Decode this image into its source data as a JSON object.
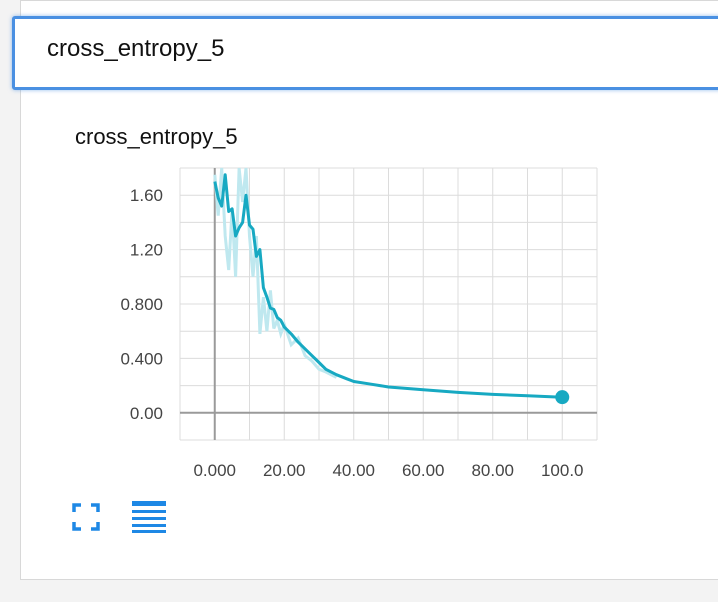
{
  "search": {
    "value": "cross_entropy_5"
  },
  "chart": {
    "title": "cross_entropy_5"
  },
  "colors": {
    "series": "#17a9c2",
    "series_raw": "#bfe8ef",
    "accent": "#4a90e2",
    "icon": "#1e88e5"
  },
  "icons": {
    "fullscreen": "fullscreen-icon",
    "menu": "menu-lines-icon"
  },
  "chart_data": {
    "type": "line",
    "title": "cross_entropy_5",
    "xlabel": "",
    "ylabel": "",
    "xlim": [
      -10,
      110
    ],
    "ylim": [
      -0.2,
      1.8
    ],
    "x_ticks": [
      0,
      20,
      40,
      60,
      80,
      100
    ],
    "x_tick_labels": [
      "0.000",
      "20.00",
      "40.00",
      "60.00",
      "80.00",
      "100.0"
    ],
    "y_ticks": [
      0,
      0.4,
      0.8,
      1.2,
      1.6
    ],
    "y_tick_labels": [
      "0.00",
      "0.400",
      "0.800",
      "1.20",
      "1.60"
    ],
    "grid": true,
    "series": [
      {
        "smoothed": true,
        "x": [
          0,
          1,
          2,
          3,
          4,
          5,
          6,
          7,
          8,
          9,
          10,
          11,
          12,
          13,
          14,
          15,
          16,
          17,
          18,
          19,
          20,
          22,
          24,
          26,
          28,
          30,
          32,
          35,
          38,
          40,
          45,
          50,
          60,
          70,
          80,
          90,
          100
        ],
        "y": [
          1.7,
          1.58,
          1.52,
          1.75,
          1.48,
          1.5,
          1.3,
          1.36,
          1.4,
          1.6,
          1.38,
          1.35,
          1.15,
          1.2,
          0.92,
          0.85,
          0.77,
          0.76,
          0.7,
          0.68,
          0.63,
          0.58,
          0.52,
          0.47,
          0.42,
          0.37,
          0.32,
          0.28,
          0.25,
          0.23,
          0.21,
          0.19,
          0.17,
          0.15,
          0.135,
          0.125,
          0.115
        ]
      },
      {
        "smoothed": false,
        "x": [
          0,
          1,
          2,
          3,
          4,
          5,
          6,
          7,
          8,
          9,
          10,
          11,
          12,
          13,
          14,
          15,
          16,
          17,
          18,
          19,
          20,
          22,
          24,
          26,
          28,
          30,
          32,
          35
        ],
        "y": [
          1.75,
          1.45,
          1.8,
          1.3,
          1.05,
          1.5,
          1.0,
          1.8,
          1.55,
          1.8,
          1.3,
          1.0,
          1.3,
          0.58,
          0.85,
          0.6,
          0.9,
          0.62,
          0.68,
          0.58,
          0.65,
          0.5,
          0.55,
          0.42,
          0.38,
          0.32,
          0.3,
          0.26
        ]
      }
    ]
  }
}
